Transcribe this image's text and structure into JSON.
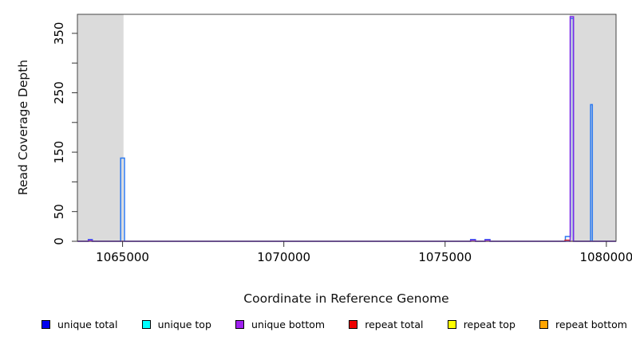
{
  "chart_data": {
    "type": "line",
    "title": "",
    "xlabel": "Coordinate in Reference Genome",
    "ylabel": "Read Coverage Depth",
    "xlim": [
      1063600,
      1080300
    ],
    "ylim": [
      0,
      382
    ],
    "grid": false,
    "legend_position": "bottom",
    "x_ticks": [
      {
        "value": 1065000,
        "label": "1065000"
      },
      {
        "value": 1070000,
        "label": "1070000"
      },
      {
        "value": 1075000,
        "label": "1075000"
      },
      {
        "value": 1080000,
        "label": "1080000"
      }
    ],
    "y_ticks": [
      {
        "value": 0,
        "label": "0"
      },
      {
        "value": 50,
        "label": "50"
      },
      {
        "value": 100,
        "label": ""
      },
      {
        "value": 150,
        "label": "150"
      },
      {
        "value": 200,
        "label": ""
      },
      {
        "value": 250,
        "label": "250"
      },
      {
        "value": 300,
        "label": ""
      },
      {
        "value": 350,
        "label": "350"
      }
    ],
    "shaded_regions": [
      {
        "name": "masked-region-left",
        "from": 1063600,
        "to": 1065030,
        "color": "#dbdbdb"
      },
      {
        "name": "masked-region-right",
        "from": 1078865,
        "to": 1080300,
        "color": "#dbdbdb"
      }
    ],
    "series": [
      {
        "name": "unique total",
        "color": "#2b79f0",
        "width": 1.5,
        "points": [
          [
            1063600,
            0
          ],
          [
            1063940,
            0
          ],
          [
            1063940,
            3
          ],
          [
            1064060,
            3
          ],
          [
            1064060,
            0
          ],
          [
            1064940,
            0
          ],
          [
            1064940,
            140
          ],
          [
            1065060,
            140
          ],
          [
            1065060,
            0
          ],
          [
            1075790,
            0
          ],
          [
            1075790,
            3
          ],
          [
            1075940,
            3
          ],
          [
            1075940,
            0
          ],
          [
            1076240,
            0
          ],
          [
            1076240,
            3
          ],
          [
            1076390,
            3
          ],
          [
            1076390,
            0
          ],
          [
            1078730,
            0
          ],
          [
            1078730,
            8
          ],
          [
            1078885,
            8
          ],
          [
            1078885,
            375
          ],
          [
            1078975,
            375
          ],
          [
            1078975,
            0
          ],
          [
            1079510,
            0
          ],
          [
            1079510,
            230
          ],
          [
            1079565,
            230
          ],
          [
            1079565,
            0
          ],
          [
            1080300,
            0
          ]
        ]
      },
      {
        "name": "unique top",
        "color": "#00e5ee",
        "width": 1.0,
        "points": [
          [
            1063600,
            0
          ],
          [
            1080300,
            0
          ]
        ]
      },
      {
        "name": "repeat total",
        "color": "#e02020",
        "width": 1.2,
        "points": [
          [
            1063600,
            0
          ],
          [
            1078715,
            0
          ],
          [
            1078715,
            2
          ],
          [
            1078860,
            2
          ],
          [
            1078860,
            0
          ],
          [
            1080300,
            0
          ]
        ]
      },
      {
        "name": "repeat top",
        "color": "#ffe400",
        "width": 1.0,
        "points": [
          [
            1063600,
            0
          ],
          [
            1080300,
            0
          ]
        ]
      },
      {
        "name": "repeat bottom",
        "color": "#ff9900",
        "width": 1.0,
        "points": [
          [
            1063600,
            0
          ],
          [
            1080300,
            0
          ]
        ]
      },
      {
        "name": "unique bottom",
        "color": "#7a2bea",
        "width": 1.5,
        "points": [
          [
            1063600,
            0
          ],
          [
            1063940,
            0
          ],
          [
            1063940,
            2
          ],
          [
            1064060,
            2
          ],
          [
            1064060,
            0
          ],
          [
            1075790,
            0
          ],
          [
            1075790,
            2
          ],
          [
            1075940,
            2
          ],
          [
            1075940,
            0
          ],
          [
            1076240,
            0
          ],
          [
            1076240,
            2
          ],
          [
            1076390,
            2
          ],
          [
            1076390,
            0
          ],
          [
            1078878,
            0
          ],
          [
            1078878,
            378
          ],
          [
            1078982,
            378
          ],
          [
            1078982,
            0
          ],
          [
            1080300,
            0
          ]
        ]
      }
    ],
    "legend": [
      {
        "label": "unique total",
        "color": "#0000ee"
      },
      {
        "label": "unique top",
        "color": "#00ffff"
      },
      {
        "label": "unique bottom",
        "color": "#a020f0"
      },
      {
        "label": "repeat total",
        "color": "#ee0000"
      },
      {
        "label": "repeat top",
        "color": "#ffff00"
      },
      {
        "label": "repeat bottom",
        "color": "#ffa500"
      }
    ]
  }
}
